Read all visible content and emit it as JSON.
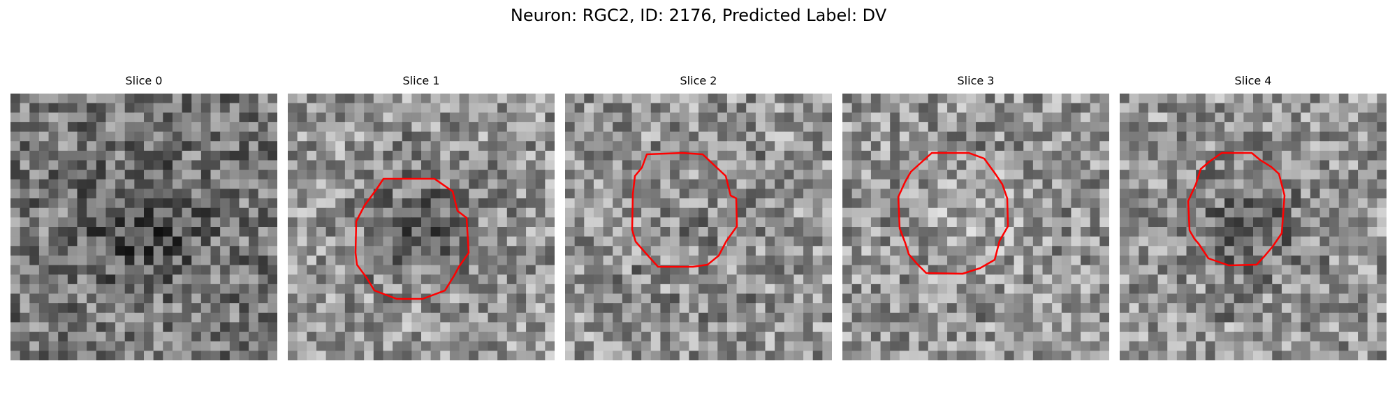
{
  "figure": {
    "title": "Neuron: RGC2, ID: 2176, Predicted Label: DV"
  },
  "colors": {
    "outline": "#ff0000",
    "background": "#ffffff",
    "colormap": "grayscale"
  },
  "panels": [
    {
      "title": "Slice 0",
      "has_outline": false,
      "center_brightness": "dark",
      "outline_shape": "none"
    },
    {
      "title": "Slice 1",
      "has_outline": true,
      "center_brightness": "dark",
      "outline_shape": "polygon"
    },
    {
      "title": "Slice 2",
      "has_outline": true,
      "center_brightness": "medium",
      "outline_shape": "polygon"
    },
    {
      "title": "Slice 3",
      "has_outline": true,
      "center_brightness": "light",
      "outline_shape": "polygon"
    },
    {
      "title": "Slice 4",
      "has_outline": true,
      "center_brightness": "dark",
      "outline_shape": "polygon"
    }
  ]
}
